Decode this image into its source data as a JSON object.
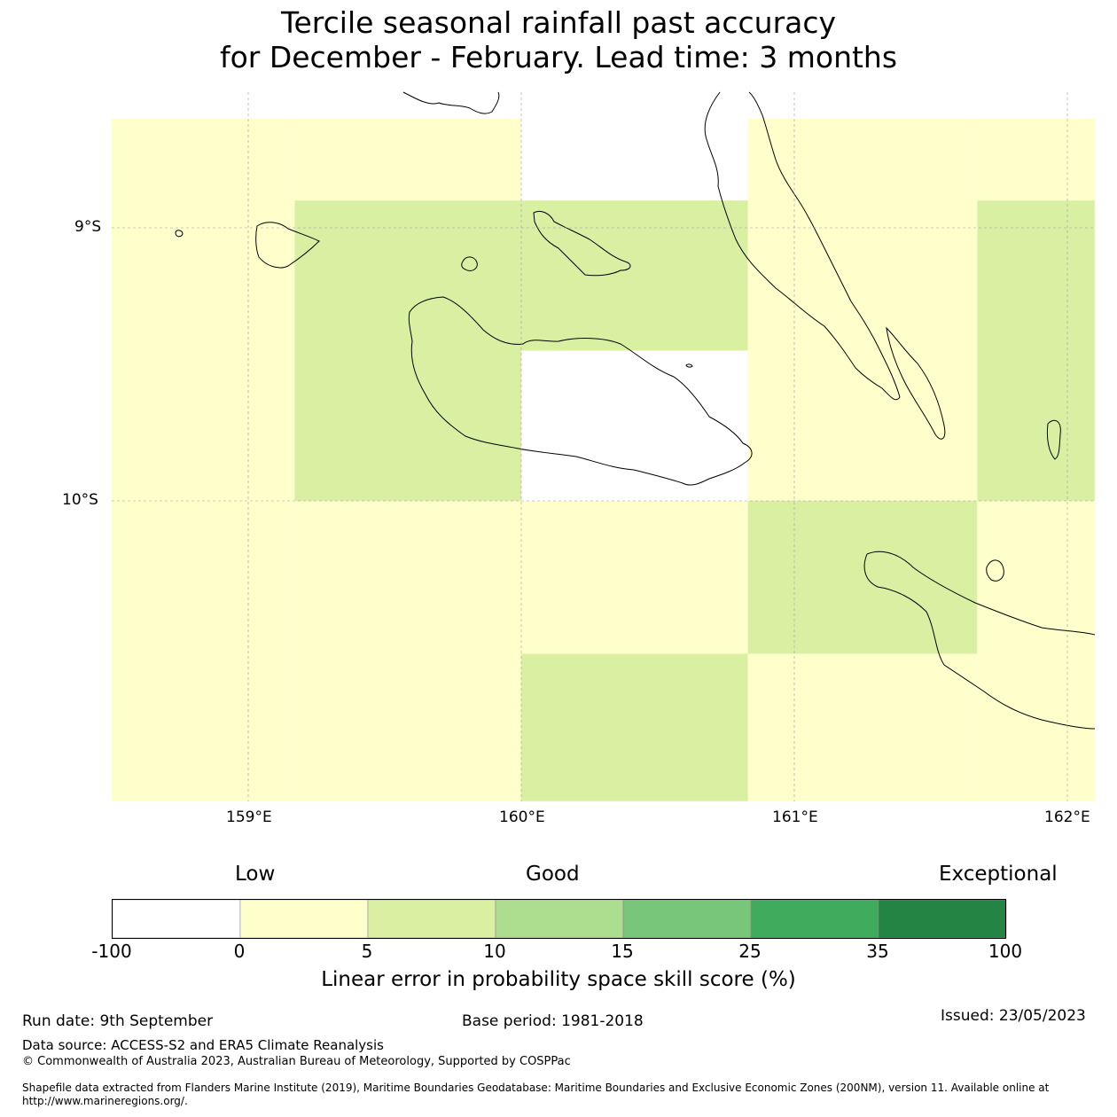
{
  "title_line1": "Tercile seasonal rainfall past accuracy",
  "title_line2": "for December - February. Lead time: 3 months",
  "map": {
    "lon_labels": [
      "159°E",
      "160°E",
      "161°E",
      "162°E"
    ],
    "lat_labels": [
      "9°S",
      "10°S"
    ],
    "grid_cells": [
      {
        "lon": [
          158.5,
          159.17
        ],
        "lat": [
          -8.6,
          -9.0
        ],
        "score": 2
      },
      {
        "lon": [
          158.5,
          159.17
        ],
        "lat": [
          -9.0,
          -10.0
        ],
        "score": 2
      },
      {
        "lon": [
          158.5,
          159.17
        ],
        "lat": [
          -10.0,
          -11.1
        ],
        "score": 2
      },
      {
        "lon": [
          159.17,
          160.0
        ],
        "lat": [
          -8.6,
          -8.9
        ],
        "score": 2
      },
      {
        "lon": [
          159.17,
          160.0
        ],
        "lat": [
          -8.9,
          -10.0
        ],
        "score": 7
      },
      {
        "lon": [
          159.17,
          160.0
        ],
        "lat": [
          -10.0,
          -11.1
        ],
        "score": 2
      },
      {
        "lon": [
          160.0,
          160.83
        ],
        "lat": [
          -8.6,
          -8.9
        ],
        "score": -5
      },
      {
        "lon": [
          160.0,
          160.83
        ],
        "lat": [
          -8.9,
          -9.45
        ],
        "score": 7
      },
      {
        "lon": [
          160.0,
          160.83
        ],
        "lat": [
          -9.45,
          -10.0
        ],
        "score": -5
      },
      {
        "lon": [
          160.0,
          160.83
        ],
        "lat": [
          -10.0,
          -10.56
        ],
        "score": 2
      },
      {
        "lon": [
          160.0,
          160.83
        ],
        "lat": [
          -10.56,
          -11.1
        ],
        "score": 7
      },
      {
        "lon": [
          160.83,
          161.67
        ],
        "lat": [
          -8.6,
          -10.0
        ],
        "score": 2
      },
      {
        "lon": [
          160.83,
          161.67
        ],
        "lat": [
          -10.0,
          -10.56
        ],
        "score": 7
      },
      {
        "lon": [
          160.83,
          161.67
        ],
        "lat": [
          -10.56,
          -11.1
        ],
        "score": 2
      },
      {
        "lon": [
          161.67,
          162.1
        ],
        "lat": [
          -8.6,
          -8.9
        ],
        "score": 2
      },
      {
        "lon": [
          161.67,
          162.1
        ],
        "lat": [
          -8.9,
          -10.0
        ],
        "score": 7
      },
      {
        "lon": [
          161.67,
          162.1
        ],
        "lat": [
          -10.0,
          -11.1
        ],
        "score": 2
      }
    ]
  },
  "colorbar": {
    "categories": [
      "Low",
      "Good",
      "Exceptional"
    ],
    "ticks": [
      "-100",
      "0",
      "5",
      "10",
      "15",
      "25",
      "35",
      "100"
    ],
    "colors": [
      "#ffffff",
      "#ffffcc",
      "#d9f0a3",
      "#addd8e",
      "#78c679",
      "#41ab5d",
      "#238443"
    ],
    "label": "Linear error in probability space skill score (%)"
  },
  "footer": {
    "run_date": "Run date: 9th September",
    "base_period": "Base period: 1981-2018",
    "issued": "Issued: 23/05/2023",
    "data_source": "Data source: ACCESS-S2 and ERA5 Climate Reanalysis",
    "copyright": "© Commonwealth of Australia 2023, Australian Bureau of Meteorology, Supported by COSPPac",
    "shapefile": "Shapefile data extracted from Flanders Marine Institute (2019), Maritime Boundaries Geodatabase: Maritime Boundaries and Exclusive Economic Zones (200NM), version 11. Available online at http://www.marineregions.org/."
  }
}
